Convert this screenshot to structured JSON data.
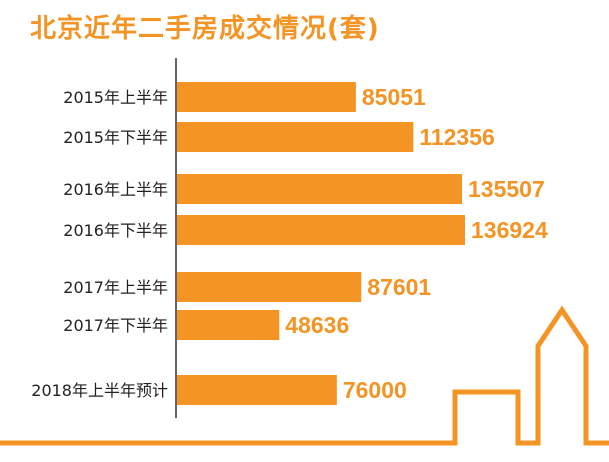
{
  "colors": {
    "accent": "#F39425",
    "axis": "#333333",
    "category_text": "#222222"
  },
  "chart_data": {
    "type": "bar",
    "orientation": "horizontal",
    "title": "北京近年二手房成交情况(套)",
    "categories": [
      "2015年上半年",
      "2015年下半年",
      "2016年上半年",
      "2016年下半年",
      "2017年上半年",
      "2017年下半年",
      "2018年上半年预计"
    ],
    "values": [
      85051,
      112356,
      135507,
      136924,
      87601,
      48636,
      76000
    ],
    "xlabel": "",
    "ylabel": "",
    "xlim": [
      0,
      190000
    ],
    "grid": false,
    "data_labels": true,
    "decoration": "building-skyline-outline"
  }
}
